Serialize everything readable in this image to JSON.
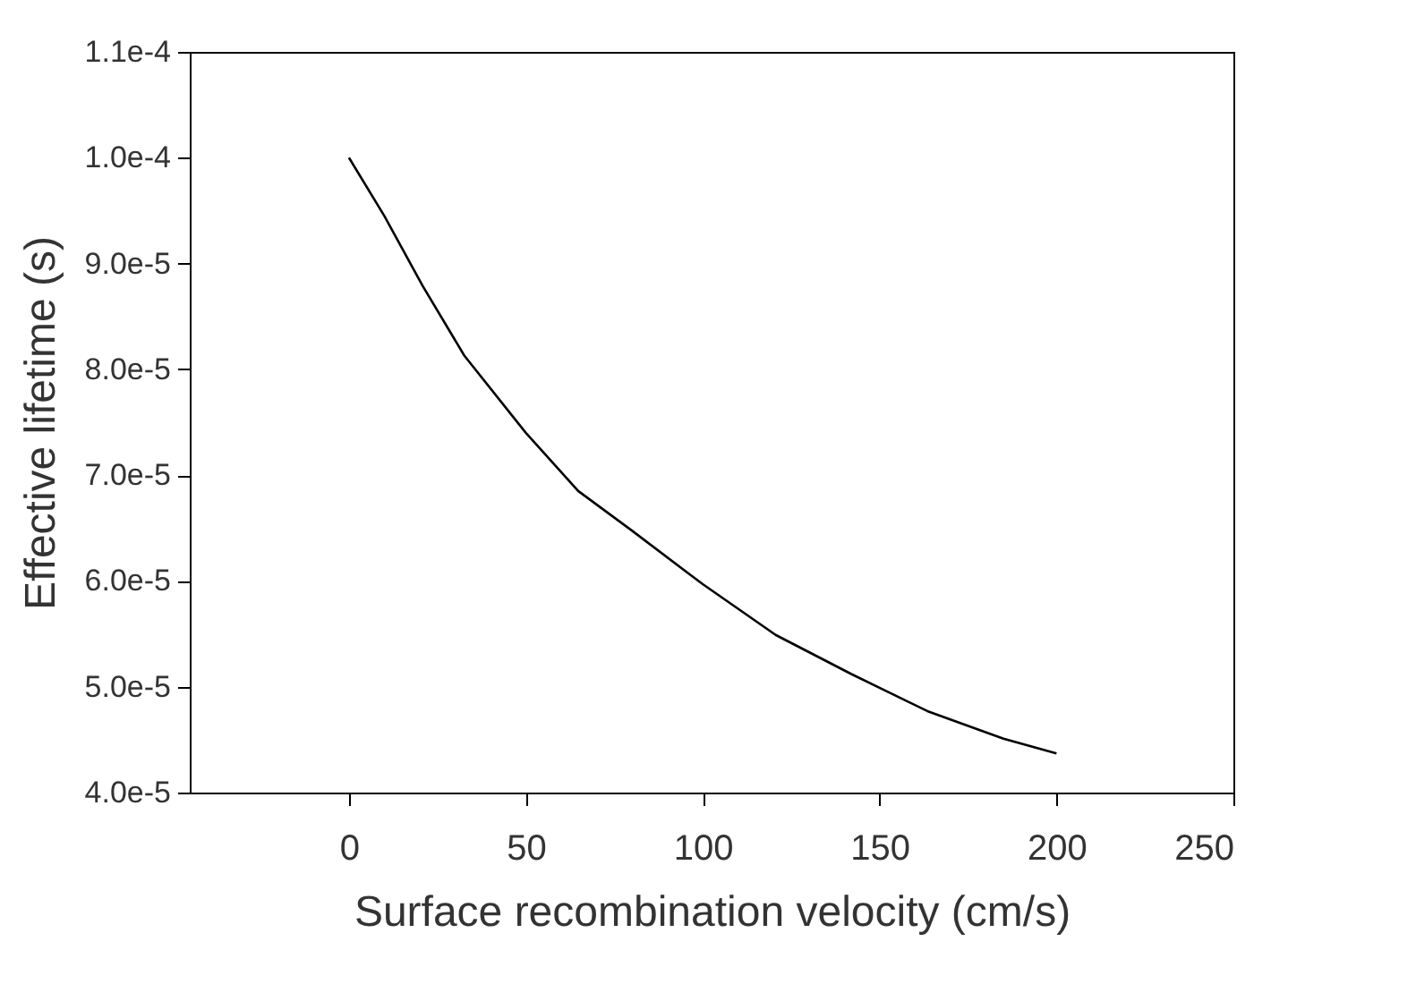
{
  "chart_data": {
    "type": "line",
    "xlabel": "Surface recombination velocity (cm/s)",
    "ylabel": "Effective lifetime (s)",
    "x": [
      0,
      10,
      20.8,
      32.6,
      50,
      64.8,
      79.8,
      100,
      120.6,
      142,
      163.5,
      185,
      200
    ],
    "series": [
      {
        "color": "#000000",
        "values": [
          0.0001,
          9.45e-05,
          8.79e-05,
          8.13e-05,
          7.4e-05,
          6.85e-05,
          6.48e-05,
          5.97e-05,
          5.49e-05,
          5.12e-05,
          4.77e-05,
          4.51e-05,
          4.37e-05
        ]
      }
    ],
    "xlim": [
      -45,
      250
    ],
    "xticks": [
      0,
      50,
      100,
      150,
      200,
      250
    ],
    "ylim": [
      4e-05,
      0.00011
    ],
    "yticks": [
      {
        "value": 4e-05,
        "label": "4.0e-5"
      },
      {
        "value": 5e-05,
        "label": "5.0e-5"
      },
      {
        "value": 6e-05,
        "label": "6.0e-5"
      },
      {
        "value": 7e-05,
        "label": "7.0e-5"
      },
      {
        "value": 8e-05,
        "label": "8.0e-5"
      },
      {
        "value": 9e-05,
        "label": "9.0e-5"
      },
      {
        "value": 0.0001,
        "label": "1.0e-4"
      },
      {
        "value": 0.00011,
        "label": "1.1e-4"
      }
    ],
    "grid": false,
    "legend": false,
    "marker": "none",
    "line_style": "solid"
  }
}
